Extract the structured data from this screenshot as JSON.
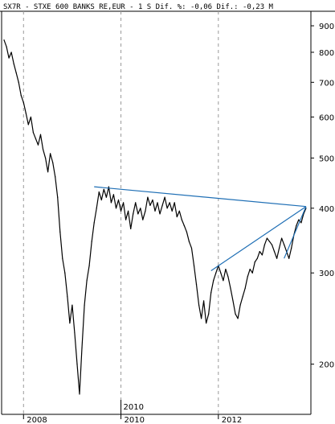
{
  "header": {
    "text": "SX7R - STXE 600 BANKS RE,EUR -  1 S Dif. %: -0,06 Dif.: -0,23 M"
  },
  "colors": {
    "background": "#ffffff",
    "series": "#000000",
    "trendline": "#1f6fb5",
    "grid": "#9a9a9a",
    "axis": "#000000"
  },
  "chart_data": {
    "type": "line",
    "title": "SX7R - STXE 600 BANKS RE,EUR",
    "y_scale": "log",
    "ylim": [
      160,
      960
    ],
    "xlim": [
      2007.55,
      2013.9
    ],
    "y_ticks": [
      900,
      800,
      700,
      600,
      500,
      400,
      300,
      200
    ],
    "x_ticks": [
      {
        "x": 2008,
        "label": "2008"
      },
      {
        "x": 2010,
        "label": "2010"
      },
      {
        "x": 2012,
        "label": "2012"
      }
    ],
    "x_marker": {
      "x": 2010,
      "label": "2010"
    },
    "series": [
      {
        "values": [
          [
            2007.6,
            845
          ],
          [
            2007.65,
            820
          ],
          [
            2007.7,
            780
          ],
          [
            2007.75,
            800
          ],
          [
            2007.8,
            760
          ],
          [
            2007.85,
            730
          ],
          [
            2007.9,
            700
          ],
          [
            2007.95,
            660
          ],
          [
            2008.0,
            640
          ],
          [
            2008.05,
            610
          ],
          [
            2008.1,
            580
          ],
          [
            2008.15,
            600
          ],
          [
            2008.2,
            560
          ],
          [
            2008.25,
            545
          ],
          [
            2008.3,
            530
          ],
          [
            2008.35,
            555
          ],
          [
            2008.4,
            520
          ],
          [
            2008.45,
            500
          ],
          [
            2008.5,
            470
          ],
          [
            2008.55,
            510
          ],
          [
            2008.6,
            490
          ],
          [
            2008.65,
            460
          ],
          [
            2008.7,
            420
          ],
          [
            2008.75,
            360
          ],
          [
            2008.8,
            320
          ],
          [
            2008.85,
            300
          ],
          [
            2008.9,
            270
          ],
          [
            2008.95,
            240
          ],
          [
            2009.0,
            260
          ],
          [
            2009.05,
            230
          ],
          [
            2009.1,
            200
          ],
          [
            2009.15,
            175
          ],
          [
            2009.2,
            215
          ],
          [
            2009.25,
            260
          ],
          [
            2009.3,
            290
          ],
          [
            2009.35,
            310
          ],
          [
            2009.4,
            345
          ],
          [
            2009.45,
            375
          ],
          [
            2009.5,
            400
          ],
          [
            2009.55,
            430
          ],
          [
            2009.6,
            415
          ],
          [
            2009.65,
            435
          ],
          [
            2009.7,
            420
          ],
          [
            2009.75,
            440
          ],
          [
            2009.8,
            410
          ],
          [
            2009.85,
            425
          ],
          [
            2009.9,
            400
          ],
          [
            2009.95,
            415
          ],
          [
            2010.0,
            395
          ],
          [
            2010.05,
            410
          ],
          [
            2010.1,
            380
          ],
          [
            2010.15,
            395
          ],
          [
            2010.2,
            365
          ],
          [
            2010.25,
            390
          ],
          [
            2010.3,
            410
          ],
          [
            2010.35,
            390
          ],
          [
            2010.4,
            400
          ],
          [
            2010.45,
            380
          ],
          [
            2010.5,
            395
          ],
          [
            2010.55,
            420
          ],
          [
            2010.6,
            405
          ],
          [
            2010.65,
            415
          ],
          [
            2010.7,
            395
          ],
          [
            2010.75,
            410
          ],
          [
            2010.8,
            390
          ],
          [
            2010.85,
            405
          ],
          [
            2010.9,
            420
          ],
          [
            2010.95,
            400
          ],
          [
            2011.0,
            410
          ],
          [
            2011.05,
            395
          ],
          [
            2011.1,
            410
          ],
          [
            2011.15,
            385
          ],
          [
            2011.2,
            395
          ],
          [
            2011.25,
            380
          ],
          [
            2011.3,
            370
          ],
          [
            2011.35,
            360
          ],
          [
            2011.4,
            345
          ],
          [
            2011.45,
            335
          ],
          [
            2011.5,
            310
          ],
          [
            2011.55,
            285
          ],
          [
            2011.6,
            260
          ],
          [
            2011.65,
            245
          ],
          [
            2011.7,
            265
          ],
          [
            2011.75,
            240
          ],
          [
            2011.8,
            250
          ],
          [
            2011.85,
            275
          ],
          [
            2011.9,
            290
          ],
          [
            2011.95,
            300
          ],
          [
            2012.0,
            310
          ],
          [
            2012.05,
            300
          ],
          [
            2012.1,
            290
          ],
          [
            2012.15,
            305
          ],
          [
            2012.2,
            295
          ],
          [
            2012.25,
            280
          ],
          [
            2012.3,
            265
          ],
          [
            2012.35,
            250
          ],
          [
            2012.4,
            245
          ],
          [
            2012.45,
            260
          ],
          [
            2012.5,
            270
          ],
          [
            2012.55,
            280
          ],
          [
            2012.6,
            295
          ],
          [
            2012.65,
            305
          ],
          [
            2012.7,
            300
          ],
          [
            2012.75,
            315
          ],
          [
            2012.8,
            320
          ],
          [
            2012.85,
            330
          ],
          [
            2012.9,
            325
          ],
          [
            2012.95,
            340
          ],
          [
            2013.0,
            350
          ],
          [
            2013.05,
            345
          ],
          [
            2013.1,
            340
          ],
          [
            2013.15,
            330
          ],
          [
            2013.2,
            320
          ],
          [
            2013.25,
            335
          ],
          [
            2013.3,
            350
          ],
          [
            2013.35,
            340
          ],
          [
            2013.4,
            330
          ],
          [
            2013.45,
            320
          ],
          [
            2013.5,
            335
          ],
          [
            2013.55,
            355
          ],
          [
            2013.6,
            370
          ],
          [
            2013.65,
            380
          ],
          [
            2013.7,
            375
          ],
          [
            2013.75,
            390
          ],
          [
            2013.8,
            400
          ]
        ]
      }
    ],
    "trendlines": [
      {
        "from": [
          2009.45,
          440
        ],
        "to": [
          2013.8,
          403
        ]
      },
      {
        "from": [
          2011.85,
          303
        ],
        "to": [
          2013.8,
          403
        ]
      },
      {
        "from": [
          2013.35,
          320
        ],
        "to": [
          2013.8,
          403
        ]
      }
    ]
  }
}
